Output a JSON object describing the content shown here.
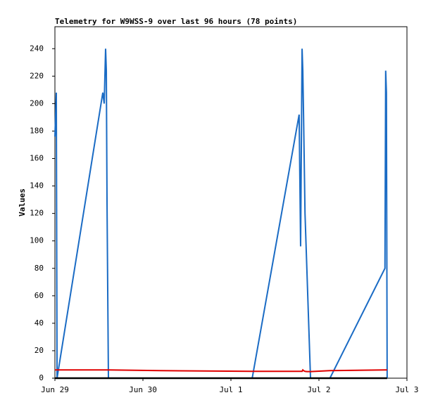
{
  "chart_data": {
    "type": "line",
    "title": "Telemetry for W9WSS-9 over last 96 hours (78 points)",
    "y_label": "Values",
    "x": [
      0,
      0.38,
      0.58,
      13.06,
      13.44,
      13.82,
      14.02,
      14.21,
      14.4,
      14.59,
      28.8,
      53.8,
      66.6,
      67.0,
      67.4,
      67.6,
      67.8,
      68.2,
      68.7,
      69.7,
      75,
      90.0,
      90.2,
      90.4,
      90.6
    ],
    "series": [
      {
        "color": "#1a6bc4",
        "values": [
          176,
          208,
          0,
          208,
          200,
          240,
          224,
          128,
          64,
          0,
          0,
          0,
          192,
          96,
          240,
          224,
          192,
          120,
          80,
          0,
          0,
          80,
          224,
          208,
          0
        ]
      },
      {
        "color": "#e00000",
        "values": [
          6,
          6,
          6,
          6,
          6,
          6,
          6,
          6,
          6,
          6,
          5.5,
          5,
          5,
          5,
          5,
          6,
          5.5,
          5,
          4.8,
          4.8,
          5.5,
          6,
          6,
          6,
          6
        ]
      },
      {
        "color": "#000000",
        "values": [
          0,
          0,
          0,
          0,
          0,
          0,
          0,
          0,
          0,
          0,
          0,
          0,
          0,
          0,
          0,
          0,
          0,
          0,
          0,
          0,
          0,
          0,
          0,
          0,
          0
        ]
      }
    ],
    "xlim": [
      0,
      96
    ],
    "xticks": [
      {
        "value": 0,
        "label": "Jun 29"
      },
      {
        "value": 24,
        "label": "Jun 30"
      },
      {
        "value": 48,
        "label": "Jul 1"
      },
      {
        "value": 72,
        "label": "Jul 2"
      },
      {
        "value": 96,
        "label": "Jul 3"
      }
    ],
    "ylim": [
      0,
      256
    ],
    "yticks": [
      0,
      20,
      40,
      60,
      80,
      100,
      120,
      140,
      160,
      180,
      200,
      220,
      240
    ],
    "grid": false
  }
}
